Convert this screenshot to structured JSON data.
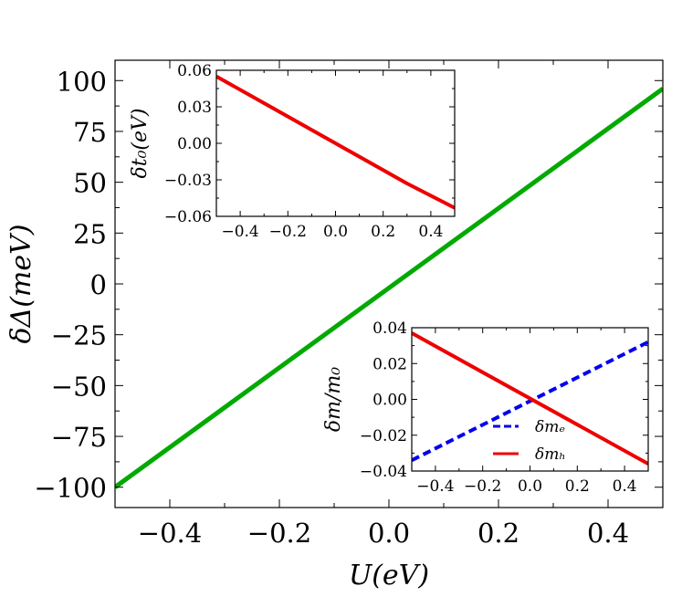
{
  "chart_data": [
    {
      "id": "main",
      "type": "line",
      "xlabel": "U(eV)",
      "ylabel": "δΔ(meV)",
      "xlim": [
        -0.5,
        0.5
      ],
      "ylim": [
        -110,
        110
      ],
      "xticks": [
        -0.4,
        -0.2,
        0.0,
        0.2,
        0.4
      ],
      "xtick_labels": [
        "−0.4",
        "−0.2",
        "0.0",
        "0.2",
        "0.4"
      ],
      "yticks": [
        -100,
        -75,
        -50,
        -25,
        0,
        25,
        50,
        75,
        100
      ],
      "ytick_labels": [
        "−100",
        "−75",
        "−50",
        "−25",
        "0",
        "25",
        "50",
        "75",
        "100"
      ],
      "grid": false,
      "series": [
        {
          "color": "#00aa00",
          "style": "solid",
          "x": [
            -0.5,
            0.5
          ],
          "y": [
            -100,
            96
          ]
        }
      ]
    },
    {
      "id": "inset-top",
      "type": "line",
      "xlabel": "",
      "ylabel": "δt₀(eV)",
      "xlim": [
        -0.5,
        0.5
      ],
      "ylim": [
        -0.06,
        0.06
      ],
      "xticks": [
        -0.4,
        -0.2,
        0.0,
        0.2,
        0.4
      ],
      "xtick_labels": [
        "−0.4",
        "−0.2",
        "0.0",
        "0.2",
        "0.4"
      ],
      "yticks": [
        -0.06,
        -0.03,
        0.0,
        0.03,
        0.06
      ],
      "ytick_labels": [
        "−0.06",
        "−0.03",
        "0.00",
        "0.03",
        "0.06"
      ],
      "grid": false,
      "series": [
        {
          "color": "#ee0000",
          "style": "solid",
          "x": [
            -0.5,
            -0.3,
            0.0,
            0.3,
            0.5
          ],
          "y": [
            0.055,
            0.033,
            0.0,
            -0.033,
            -0.053
          ]
        }
      ]
    },
    {
      "id": "inset-bottom",
      "type": "line",
      "xlabel": "",
      "ylabel": "δm/m₀",
      "xlim": [
        -0.5,
        0.5
      ],
      "ylim": [
        -0.04,
        0.04
      ],
      "xticks": [
        -0.4,
        -0.2,
        0.0,
        0.2,
        0.4
      ],
      "xtick_labels": [
        "−0.4",
        "−0.2",
        "0.0",
        "0.2",
        "0.4"
      ],
      "yticks": [
        -0.04,
        -0.02,
        0.0,
        0.02,
        0.04
      ],
      "ytick_labels": [
        "−0.04",
        "−0.02",
        "0.00",
        "0.02",
        "0.04"
      ],
      "grid": false,
      "legend_position": "lower-right",
      "series": [
        {
          "name": "δmₑ",
          "color": "#0000ee",
          "style": "dashed",
          "x": [
            -0.5,
            0.5
          ],
          "y": [
            -0.034,
            0.032
          ]
        },
        {
          "name": "δmₕ",
          "color": "#ee0000",
          "style": "solid",
          "x": [
            -0.5,
            0.5
          ],
          "y": [
            0.037,
            -0.036
          ]
        }
      ]
    }
  ]
}
